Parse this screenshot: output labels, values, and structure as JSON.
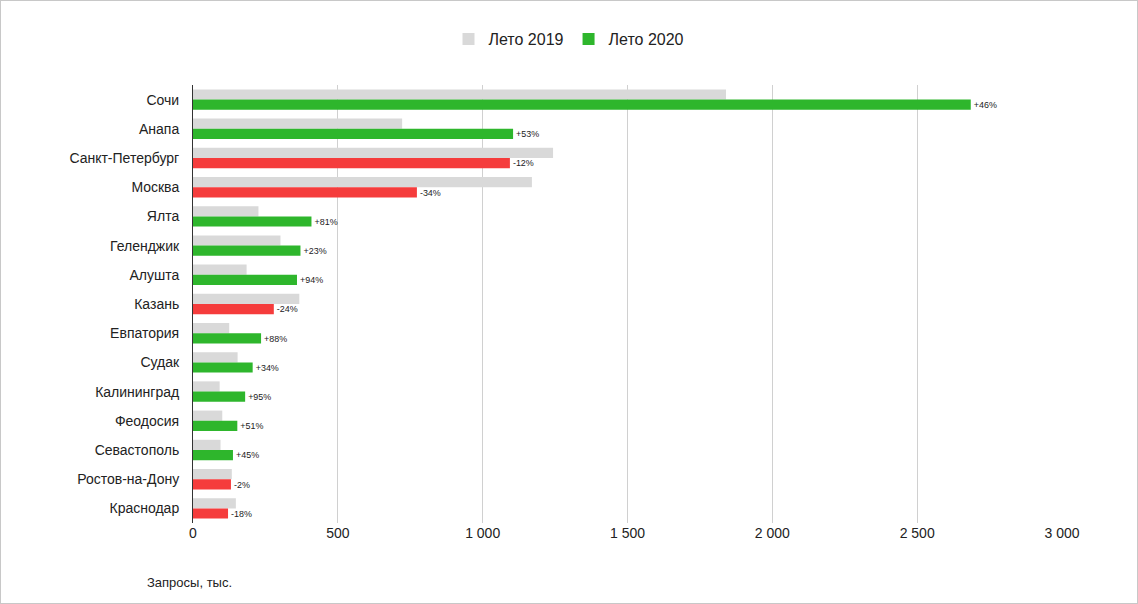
{
  "chart_data": {
    "type": "bar",
    "orientation": "horizontal",
    "categories": [
      "Сочи",
      "Анапа",
      "Санкт-Петербург",
      "Москва",
      "Ялта",
      "Геленджик",
      "Алушта",
      "Казань",
      "Евпатория",
      "Судак",
      "Калининград",
      "Феодосия",
      "Севастополь",
      "Ростов-на-Дону",
      "Краснодар"
    ],
    "series": [
      {
        "name": "Лето 2019",
        "color": "#d9d9d9",
        "values": [
          1840,
          722,
          1243,
          1170,
          226,
          302,
          185,
          367,
          125,
          154,
          92,
          101,
          95,
          134,
          148
        ]
      },
      {
        "name": "Лето 2020",
        "colors": [
          "#2eb62c",
          "#2eb62c",
          "#f53c3c",
          "#f53c3c",
          "#2eb62c",
          "#2eb62c",
          "#2eb62c",
          "#f53c3c",
          "#2eb62c",
          "#2eb62c",
          "#2eb62c",
          "#2eb62c",
          "#2eb62c",
          "#f53c3c",
          "#f53c3c"
        ],
        "values": [
          2685,
          1105,
          1094,
          773,
          409,
          371,
          359,
          279,
          235,
          206,
          180,
          153,
          138,
          131,
          121
        ],
        "change_labels": [
          "+46%",
          "+53%",
          "-12%",
          "-34%",
          "+81%",
          "+23%",
          "+94%",
          "-24%",
          "+88%",
          "+34%",
          "+95%",
          "+51%",
          "+45%",
          "-2%",
          "-18%"
        ]
      }
    ],
    "xlabel": "Запросы, тыс.",
    "xlim": [
      0,
      3000
    ],
    "xticks": [
      0,
      500,
      {
        "value": 1000,
        "label": "1 000"
      },
      {
        "value": 1500,
        "label": "1 500"
      },
      {
        "value": 2000,
        "label": "2 000"
      },
      {
        "value": 2500,
        "label": "2 500"
      },
      {
        "value": 3000,
        "label": "3 000"
      }
    ],
    "grid": true,
    "legend": "top"
  }
}
